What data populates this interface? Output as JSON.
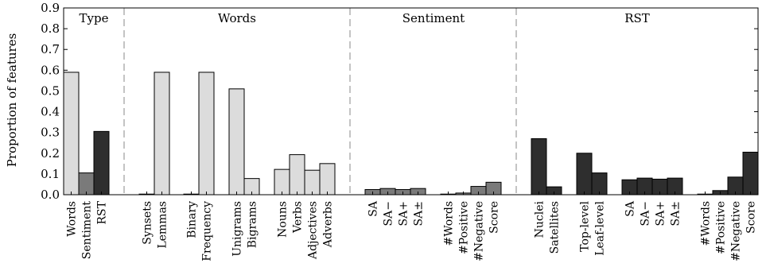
{
  "chart_data": {
    "type": "bar",
    "ylabel": "Proportion of features",
    "ylim": [
      0,
      0.9
    ],
    "yticks": [
      "0.0",
      "0.1",
      "0.2",
      "0.3",
      "0.4",
      "0.5",
      "0.6",
      "0.7",
      "0.8",
      "0.9"
    ],
    "fill_colors": {
      "light": "#dcdcdc",
      "medium": "#7a7a7a",
      "dark": "#2e2e2e"
    },
    "sections": [
      {
        "title": "Type",
        "bars": [
          {
            "label": "Words",
            "value": 0.59,
            "fill": "light"
          },
          {
            "label": "Sentiment",
            "value": 0.105,
            "fill": "medium"
          },
          {
            "label": "RST",
            "value": 0.305,
            "fill": "dark"
          }
        ]
      },
      {
        "title": "Words",
        "bars": [
          {
            "label": "Synsets",
            "value": 0.003,
            "fill": "light"
          },
          {
            "label": "Lemmas",
            "value": 0.59,
            "fill": "light"
          },
          {
            "label": "Binary",
            "value": 0.003,
            "fill": "light"
          },
          {
            "label": "Frequency",
            "value": 0.59,
            "fill": "light"
          },
          {
            "label": "Unigrams",
            "value": 0.51,
            "fill": "light"
          },
          {
            "label": "Bigrams",
            "value": 0.078,
            "fill": "light"
          },
          {
            "label": "Nouns",
            "value": 0.122,
            "fill": "light"
          },
          {
            "label": "Verbs",
            "value": 0.193,
            "fill": "light"
          },
          {
            "label": "Adjectives",
            "value": 0.118,
            "fill": "light"
          },
          {
            "label": "Adverbs",
            "value": 0.15,
            "fill": "light"
          }
        ]
      },
      {
        "title": "Sentiment",
        "bars": [
          {
            "label": "SA",
            "value": 0.025,
            "fill": "medium"
          },
          {
            "label": "SA−",
            "value": 0.03,
            "fill": "medium"
          },
          {
            "label": "SA+",
            "value": 0.025,
            "fill": "medium"
          },
          {
            "label": "SA±",
            "value": 0.03,
            "fill": "medium"
          },
          {
            "label": "#Words",
            "value": 0.003,
            "fill": "medium"
          },
          {
            "label": "#Positive",
            "value": 0.008,
            "fill": "medium"
          },
          {
            "label": "#Negative",
            "value": 0.04,
            "fill": "medium"
          },
          {
            "label": "Score",
            "value": 0.06,
            "fill": "medium"
          }
        ]
      },
      {
        "title": "RST",
        "bars": [
          {
            "label": "Nuclei",
            "value": 0.27,
            "fill": "dark"
          },
          {
            "label": "Satellites",
            "value": 0.038,
            "fill": "dark"
          },
          {
            "label": "Top-level",
            "value": 0.2,
            "fill": "dark"
          },
          {
            "label": "Leaf-level",
            "value": 0.105,
            "fill": "dark"
          },
          {
            "label": "SA",
            "value": 0.072,
            "fill": "dark"
          },
          {
            "label": "SA−",
            "value": 0.08,
            "fill": "dark"
          },
          {
            "label": "SA+",
            "value": 0.075,
            "fill": "dark"
          },
          {
            "label": "SA±",
            "value": 0.08,
            "fill": "dark"
          },
          {
            "label": "#Words",
            "value": 0.003,
            "fill": "dark"
          },
          {
            "label": "#Positive",
            "value": 0.02,
            "fill": "dark"
          },
          {
            "label": "#Negative",
            "value": 0.085,
            "fill": "dark"
          },
          {
            "label": "Score",
            "value": 0.205,
            "fill": "dark"
          }
        ]
      }
    ]
  }
}
